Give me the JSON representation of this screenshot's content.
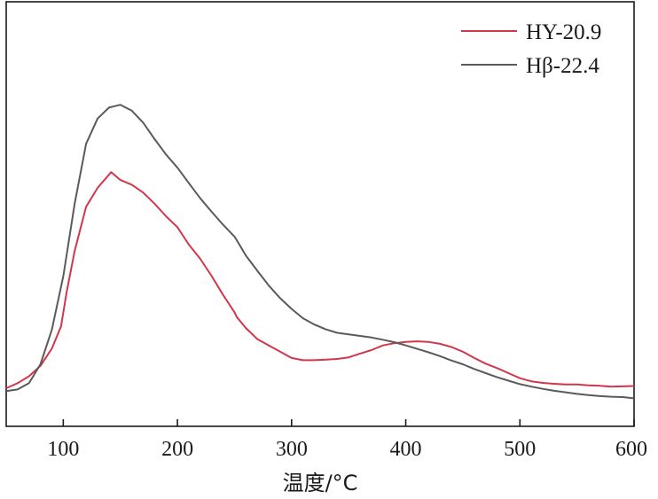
{
  "chart_data": {
    "type": "line",
    "title": "",
    "xlabel": "温度/°C",
    "ylabel": "",
    "xlim": [
      50,
      600
    ],
    "ylim": [
      0,
      100
    ],
    "xticks": [
      100,
      200,
      300,
      400,
      500,
      600
    ],
    "xtick_labels": [
      "100",
      "200",
      "300",
      "400",
      "500",
      "600"
    ],
    "grid": false,
    "legend_position": "top-right",
    "series": [
      {
        "name": "HY-20.9",
        "color": "#d0384a",
        "x": [
          50,
          60,
          70,
          80,
          90,
          98,
          103,
          110,
          120,
          130,
          142,
          150,
          160,
          170,
          180,
          190,
          200,
          210,
          220,
          230,
          240,
          250,
          252,
          260,
          270,
          280,
          290,
          300,
          310,
          320,
          330,
          340,
          350,
          360,
          370,
          380,
          390,
          400,
          410,
          420,
          430,
          440,
          450,
          460,
          470,
          480,
          490,
          500,
          510,
          520,
          530,
          540,
          550,
          560,
          570,
          580,
          590,
          600
        ],
        "y": [
          1.4,
          3,
          5.2,
          8.5,
          14,
          21,
          32,
          45,
          59,
          65,
          70,
          67.5,
          66,
          63.5,
          60,
          56,
          52.5,
          47,
          42.5,
          37,
          31,
          25.5,
          24,
          20.5,
          17,
          15,
          13,
          11,
          10.3,
          10.3,
          10.5,
          10.7,
          11.2,
          12.4,
          13.5,
          15,
          15.7,
          16.1,
          16.3,
          16.1,
          15.5,
          14.5,
          13,
          11,
          9.2,
          7.8,
          6.2,
          4.6,
          3.6,
          3.1,
          2.8,
          2.6,
          2.6,
          2.3,
          2.2,
          1.9,
          2,
          2.1
        ]
      },
      {
        "name": "Hβ-22.4",
        "color": "#5a5a5a",
        "x": [
          50,
          60,
          70,
          80,
          90,
          100,
          110,
          120,
          130,
          140,
          150,
          160,
          170,
          180,
          190,
          200,
          210,
          220,
          230,
          240,
          250,
          252,
          260,
          270,
          280,
          290,
          300,
          310,
          320,
          330,
          340,
          350,
          360,
          370,
          380,
          390,
          400,
          410,
          420,
          430,
          440,
          450,
          460,
          470,
          480,
          490,
          500,
          510,
          520,
          530,
          540,
          550,
          560,
          570,
          580,
          590,
          600
        ],
        "y": [
          0.5,
          1,
          3,
          9,
          20,
          37,
          60,
          79,
          87,
          90.5,
          91.4,
          89.5,
          85.7,
          80.5,
          75.6,
          71.4,
          66.5,
          61.7,
          57.4,
          53.3,
          49.5,
          48.4,
          43.5,
          38.7,
          34,
          30,
          26.6,
          23.6,
          21.6,
          20.1,
          19,
          18.5,
          18,
          17.5,
          16.8,
          16,
          15,
          13.9,
          12.8,
          11.6,
          10.2,
          9,
          7.5,
          6.2,
          4.9,
          3.8,
          2.7,
          1.9,
          1.2,
          0.6,
          0.1,
          -0.4,
          -0.8,
          -1.1,
          -1.3,
          -1.4,
          -1.8
        ]
      }
    ]
  }
}
